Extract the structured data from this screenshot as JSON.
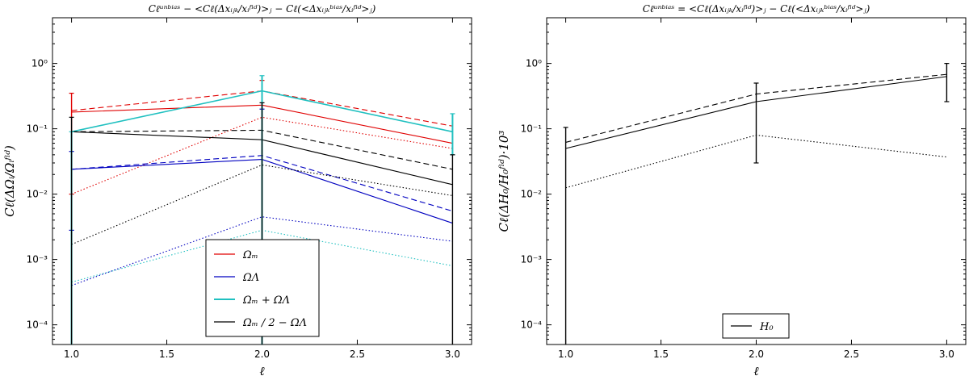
{
  "chart_data": [
    {
      "type": "line",
      "yscale": "log",
      "title": "C_ℓ^unbias − <C_ℓ(Δx_ijk/x_i^fid)>_j − C_ℓ(<Δx_ijk^bias/x_i^fid>_j)",
      "xlabel": "ℓ",
      "ylabel": "C_ℓ(ΔΩ_i/Ω_i^fid)",
      "xlim": [
        0.9,
        3.1
      ],
      "ylim": [
        5e-05,
        5
      ],
      "xticks": [
        "1.0",
        "1.5",
        "2.0",
        "2.5",
        "3.0"
      ],
      "yticks": [
        "10^-4",
        "10^-3",
        "10^-2",
        "10^-1",
        "10^0"
      ],
      "legend": {
        "placement": "bottom-center",
        "entries": [
          {
            "label": "Ω_M",
            "color": "#e00000"
          },
          {
            "label": "Ω_Λ",
            "color": "#0000c0"
          },
          {
            "label": "Ω_M + Ω_Λ",
            "color": "#20c0c0"
          },
          {
            "label": "Ω_M / 2 − Ω_Λ",
            "color": "#000000"
          }
        ]
      },
      "series": [
        {
          "name": "Ω_M solid",
          "color": "#e00000",
          "style": "solid",
          "x": [
            1,
            2,
            3
          ],
          "values": [
            0.18,
            0.23,
            0.06
          ]
        },
        {
          "name": "Ω_M dashed",
          "color": "#e00000",
          "style": "dashed",
          "x": [
            1,
            2,
            3
          ],
          "values": [
            0.19,
            0.38,
            0.11
          ]
        },
        {
          "name": "Ω_M dotted",
          "color": "#e00000",
          "style": "dotted",
          "x": [
            1,
            2,
            3
          ],
          "values": [
            0.01,
            0.15,
            0.05
          ]
        },
        {
          "name": "Ω_Λ solid",
          "color": "#0000c0",
          "style": "solid",
          "x": [
            1,
            2,
            3
          ],
          "values": [
            0.024,
            0.034,
            0.0036
          ]
        },
        {
          "name": "Ω_Λ dashed",
          "color": "#0000c0",
          "style": "dashed",
          "x": [
            1,
            2,
            3
          ],
          "values": [
            0.024,
            0.039,
            0.0055
          ]
        },
        {
          "name": "Ω_Λ dotted",
          "color": "#0000c0",
          "style": "dotted",
          "x": [
            1,
            2,
            3
          ],
          "values": [
            0.0004,
            0.0045,
            0.0019
          ]
        },
        {
          "name": "Ω_M+Ω_Λ solid",
          "color": "#20c0c0",
          "style": "solid",
          "x": [
            1,
            2,
            3
          ],
          "values": [
            0.09,
            0.38,
            0.09
          ]
        },
        {
          "name": "Ω_M+Ω_Λ dotted",
          "color": "#20c0c0",
          "style": "dotted",
          "x": [
            1,
            2,
            3
          ],
          "values": [
            0.00045,
            0.0028,
            0.0008
          ]
        },
        {
          "name": "Ω_M/2−Ω_Λ solid",
          "color": "#000000",
          "style": "solid",
          "x": [
            1,
            2,
            3
          ],
          "values": [
            0.09,
            0.068,
            0.014
          ]
        },
        {
          "name": "Ω_M/2−Ω_Λ dashed",
          "color": "#000000",
          "style": "dashed",
          "x": [
            1,
            2,
            3
          ],
          "values": [
            0.09,
            0.095,
            0.024
          ]
        },
        {
          "name": "Ω_M/2−Ω_Λ dotted",
          "color": "#000000",
          "style": "dotted",
          "x": [
            1,
            2,
            3
          ],
          "values": [
            0.0017,
            0.028,
            0.0095
          ]
        }
      ],
      "errorbars": [
        {
          "color": "#e00000",
          "x": 1,
          "low": 0.01,
          "high": 0.35
        },
        {
          "color": "#e00000",
          "x": 2,
          "low": 5e-05,
          "high": 0.55
        },
        {
          "color": "#0000c0",
          "x": 1,
          "low": 0.0028,
          "high": 0.045
        },
        {
          "color": "#0000c0",
          "x": 2,
          "low": 5e-05,
          "high": 0.2
        },
        {
          "color": "#20c0c0",
          "x": 1,
          "low": 5e-05,
          "high": 0.09
        },
        {
          "color": "#20c0c0",
          "x": 2,
          "low": 5e-05,
          "high": 0.65
        },
        {
          "color": "#20c0c0",
          "x": 3,
          "low": 0.04,
          "high": 0.17
        },
        {
          "color": "#000000",
          "x": 1,
          "low": 5e-05,
          "high": 0.15
        },
        {
          "color": "#000000",
          "x": 2,
          "low": 5e-05,
          "high": 0.25
        },
        {
          "color": "#000000",
          "x": 3,
          "low": 5e-05,
          "high": 0.04
        }
      ]
    },
    {
      "type": "line",
      "yscale": "log",
      "title": "C_ℓ^unbias = <C_ℓ(Δx_ijk/x_i^fid)>_j − C_ℓ(<Δx_ijk^bias/x_i^fid>_j)",
      "xlabel": "ℓ",
      "ylabel": "C_ℓ(ΔH_0/H_0^fid)·10^3",
      "xlim": [
        0.9,
        3.1
      ],
      "ylim": [
        5e-05,
        5
      ],
      "xticks": [
        "1.0",
        "1.5",
        "2.0",
        "2.5",
        "3.0"
      ],
      "yticks": [
        "10^-4",
        "10^-3",
        "10^-2",
        "10^-1",
        "10^0"
      ],
      "legend": {
        "placement": "bottom-center",
        "entries": [
          {
            "label": "H_0",
            "color": "#000000"
          }
        ]
      },
      "series": [
        {
          "name": "H_0 solid",
          "color": "#000000",
          "style": "solid",
          "x": [
            1,
            2,
            3
          ],
          "values": [
            0.05,
            0.26,
            0.63
          ]
        },
        {
          "name": "H_0 dashed",
          "color": "#000000",
          "style": "dashed",
          "x": [
            1,
            2,
            3
          ],
          "values": [
            0.062,
            0.34,
            0.68
          ]
        },
        {
          "name": "H_0 dotted",
          "color": "#000000",
          "style": "dotted",
          "x": [
            1,
            2,
            3
          ],
          "values": [
            0.0125,
            0.08,
            0.037
          ]
        }
      ],
      "errorbars": [
        {
          "color": "#000000",
          "x": 1,
          "low": 5e-05,
          "high": 0.105
        },
        {
          "color": "#000000",
          "x": 2,
          "low": 0.03,
          "high": 0.5
        },
        {
          "color": "#000000",
          "x": 3,
          "low": 0.26,
          "high": 1.0
        }
      ]
    }
  ]
}
